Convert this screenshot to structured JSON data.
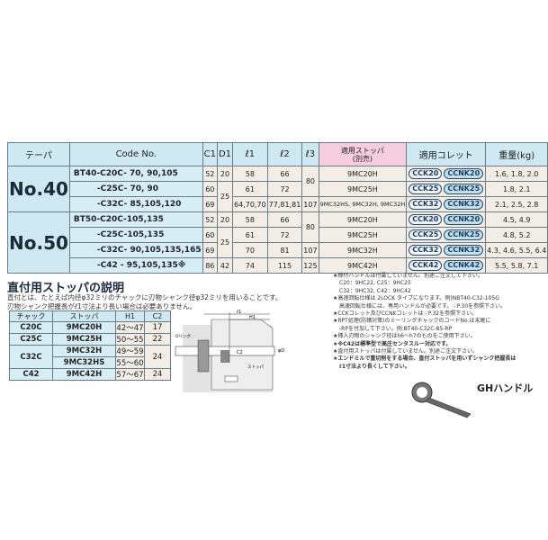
{
  "main_table": {
    "headers": {
      "taper": "テーパ",
      "code": "Code No.",
      "c1": "C1",
      "d1": "D1",
      "l1": "ℓ1",
      "l2": "ℓ2",
      "l3": "ℓ3",
      "stopper": "適用ストッパ",
      "stopper_sub": "(別売)",
      "collet": "適用コレット",
      "weight": "重量(kg)"
    },
    "groups": [
      {
        "taper": "No.40",
        "rows": [
          {
            "code": "BT40-C20C- 70, 90,105",
            "c1": "52",
            "d1": "20",
            "l1": "58",
            "l2": "66",
            "l3": "80",
            "stopper": "9MC20H",
            "collet": [
              "CCK20",
              "CCNK20"
            ],
            "weight": "1.6, 1.8, 2.0"
          },
          {
            "code": "-C25C- 70, 90",
            "c1": "60",
            "d1": "25",
            "l1": "61",
            "l2": "72",
            "stopper": "9MC25H",
            "collet": [
              "CCK25",
              "CCNK25"
            ],
            "weight": "1.8, 2.1"
          },
          {
            "code": "-C32C- 85,105,120",
            "c1": "69",
            "l1": "64,70,70",
            "l2": "77,81,81",
            "l3": "107",
            "stopper": "9MC32HS, 9MC32H, 9MC32H",
            "collet": [
              "CCK32",
              "CCNK32"
            ],
            "weight": "2.1, 2.5, 2.8"
          }
        ]
      },
      {
        "taper": "No.50",
        "rows": [
          {
            "code": "BT50-C20C-105,135",
            "c1": "52",
            "d1": "20",
            "l1": "58",
            "l2": "66",
            "l3": "80",
            "stopper": "9MC20H",
            "collet": [
              "CCK20",
              "CCNK20"
            ],
            "weight": "4.5, 4.9"
          },
          {
            "code": "-C25C-105,135",
            "c1": "60",
            "d1": "25",
            "l1": "61",
            "l2": "72",
            "stopper": "9MC25H",
            "collet": [
              "CCK25",
              "CCNK25"
            ],
            "weight": "4.8, 5.2"
          },
          {
            "code": "-C32C- 90,105,135,165",
            "c1": "69",
            "l1": "70",
            "l2": "81",
            "l3": "107",
            "stopper": "9MC32H",
            "collet": [
              "CCK32",
              "CCNK32"
            ],
            "weight": "4.3, 4.6, 5.5, 6.4"
          },
          {
            "code": "-C42  - 95,105,135※",
            "c1": "86",
            "d1": "42",
            "l1": "74",
            "l2": "115",
            "l3": "125",
            "stopper": "9MC42H",
            "collet": [
              "CCK42",
              "CCNK42"
            ],
            "weight": "5.5, 5.8, 7.1"
          }
        ]
      }
    ]
  },
  "stopper_section": {
    "title": "直付用ストッパの説明",
    "desc1": "直付とは、たとえば内径φ32ミリのチャックに刃物シャンク径φ32ミリを用いることです。",
    "desc2": "刃物シャンク把握長がℓ1寸法より長い場合は必要ありません。",
    "headers": {
      "chuck": "チャック",
      "stopper": "ストッパ",
      "h1": "H1",
      "c2": "C2"
    },
    "rows": [
      {
        "chuck": "C20C",
        "stopper": "9MC20H",
        "h1": "42〜47",
        "c2": "17"
      },
      {
        "chuck": "C25C",
        "stopper": "9MC25H",
        "h1": "50〜55",
        "c2": "22"
      },
      {
        "chuck": "C32C",
        "stopper": "9MC32H",
        "h1": "49〜59",
        "c2": "24"
      },
      {
        "stopper": "9MC32HS",
        "h1": "55〜60"
      },
      {
        "chuck": "C42",
        "stopper": "9MC42H",
        "h1": "57〜67",
        "c2": "24"
      }
    ]
  },
  "diagram": {
    "l1": "ℓ1",
    "h1": "H1",
    "c2": "C2",
    "d": "φD",
    "o_ring": "Oリング",
    "stopper": "ストッパ"
  },
  "notes": [
    "★締付ハンドルは付属していません。別途ご注文して下さい。",
    "C20：9HC22, C25：9HC25",
    "C32：9HC32, C42：9HC42",
    "★高速回転仕様は 2LOCK タイプになります。例)NBT40-C32-105G",
    "高速回転仕様には、専用ハンドルが必要です。☞P.30を参照下さい。",
    "★CCKコレット及びCCNKコレットは☞P.32を参照下さい。",
    "★RPT処理(防錆対策)のミーリングチャックのコードNo.は末尾に",
    "-RPを付加して下さい。例:BT40-C32C-85-RP",
    "★挿入刃物のシャンク径はh6〜h7のものをご使用下さい。",
    "★※C42は標準型で高圧センタスルー対応です。",
    "★直付用ストッパは付属していません。別途ご注文下さい。",
    "★エンドミルで重切削をする場合、直付ストッパを用いずシャンク把握長は",
    "ℓ1寸法より長くして下さい。"
  ],
  "handle_label": "GHハンドル"
}
